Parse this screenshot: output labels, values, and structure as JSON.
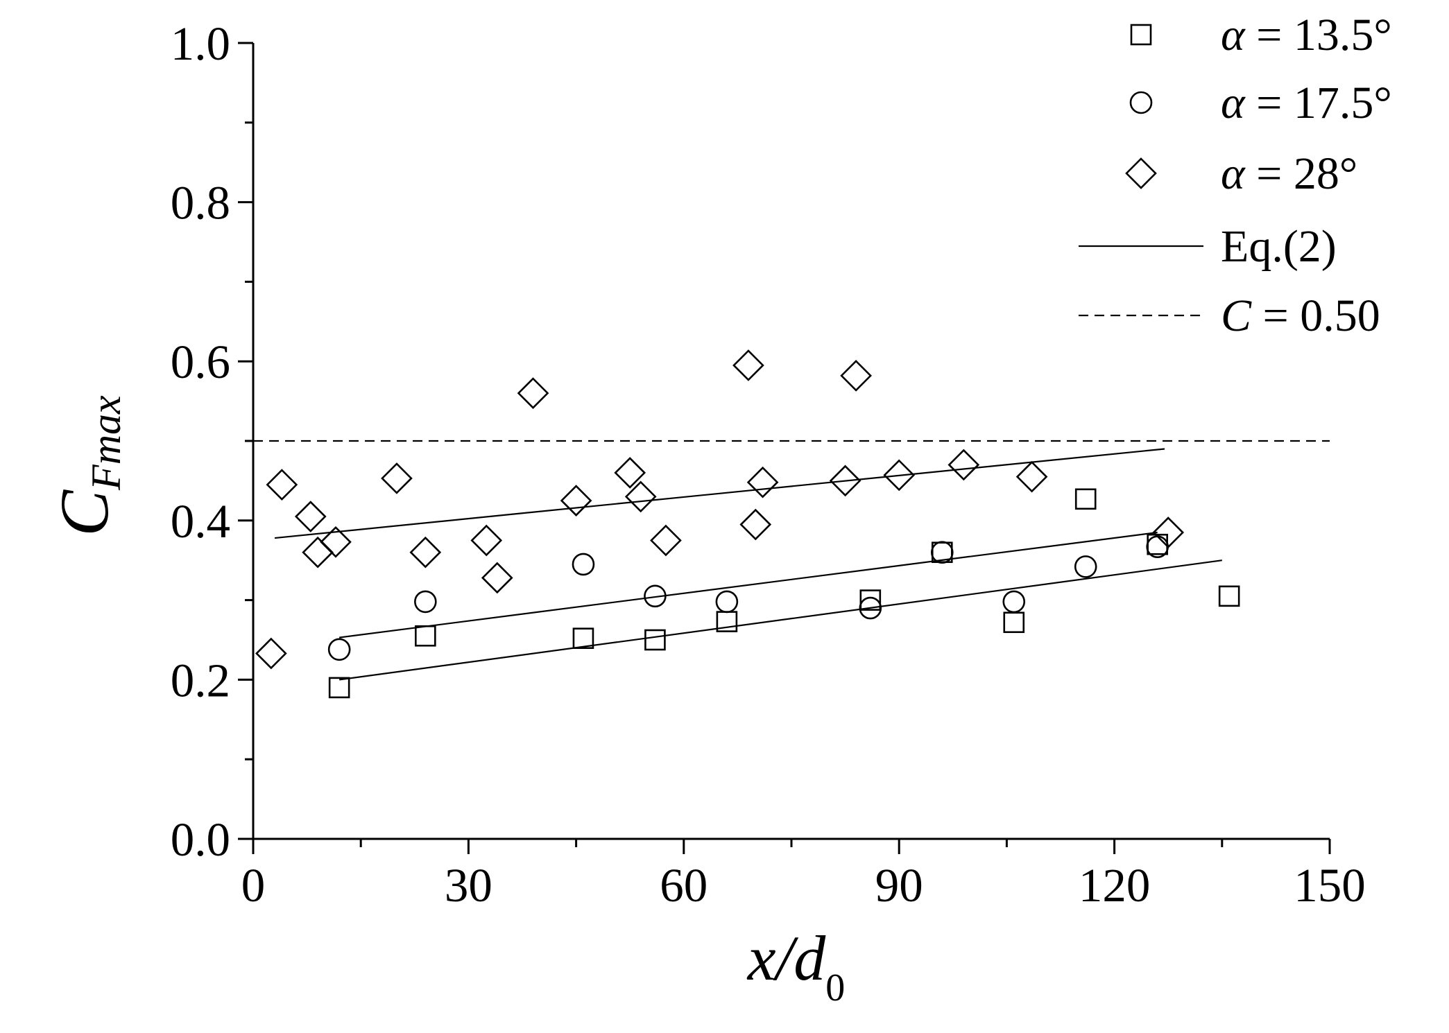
{
  "chart_data": {
    "type": "scatter",
    "title": "",
    "xlabel": {
      "main": "x/d",
      "subscript": "0"
    },
    "ylabel": {
      "main": "C",
      "subscript": "Fmax"
    },
    "xlim": [
      0,
      150
    ],
    "ylim": [
      0.0,
      1.0
    ],
    "xticks": [
      0,
      30,
      60,
      90,
      120,
      150
    ],
    "xtick_labels": [
      "0",
      "30",
      "60",
      "90",
      "120",
      "150"
    ],
    "yticks": [
      0.0,
      0.2,
      0.4,
      0.6,
      0.8,
      1.0
    ],
    "ytick_labels": [
      "0.0",
      "0.2",
      "0.4",
      "0.6",
      "0.8",
      "1.0"
    ],
    "grid": false,
    "legend_position": "top-right",
    "series": [
      {
        "name": "α = 13.5°",
        "marker": "square",
        "points": [
          [
            12,
            0.19
          ],
          [
            24,
            0.255
          ],
          [
            46,
            0.252
          ],
          [
            56,
            0.25
          ],
          [
            66,
            0.273
          ],
          [
            86,
            0.3
          ],
          [
            96,
            0.36
          ],
          [
            106,
            0.272
          ],
          [
            116,
            0.427
          ],
          [
            126,
            0.37
          ],
          [
            136,
            0.305
          ]
        ]
      },
      {
        "name": "α = 17.5°",
        "marker": "circle",
        "points": [
          [
            12,
            0.238
          ],
          [
            24,
            0.298
          ],
          [
            46,
            0.345
          ],
          [
            56,
            0.305
          ],
          [
            66,
            0.298
          ],
          [
            86,
            0.29
          ],
          [
            96,
            0.36
          ],
          [
            106,
            0.298
          ],
          [
            116,
            0.342
          ],
          [
            126,
            0.367
          ]
        ]
      },
      {
        "name": "α = 28°",
        "marker": "diamond",
        "points": [
          [
            2.5,
            0.233
          ],
          [
            4,
            0.445
          ],
          [
            8,
            0.405
          ],
          [
            9,
            0.36
          ],
          [
            11.5,
            0.373
          ],
          [
            20,
            0.453
          ],
          [
            24,
            0.36
          ],
          [
            32.5,
            0.375
          ],
          [
            34,
            0.328
          ],
          [
            39,
            0.56
          ],
          [
            45,
            0.425
          ],
          [
            52.5,
            0.46
          ],
          [
            54,
            0.43
          ],
          [
            57.5,
            0.375
          ],
          [
            69,
            0.595
          ],
          [
            70,
            0.395
          ],
          [
            71,
            0.448
          ],
          [
            82.5,
            0.45
          ],
          [
            84,
            0.582
          ],
          [
            90,
            0.457
          ],
          [
            99,
            0.47
          ],
          [
            108.5,
            0.455
          ],
          [
            127.5,
            0.385
          ]
        ]
      }
    ],
    "lines": [
      {
        "name": "Eq.(2)",
        "style": "solid",
        "x": [
          12,
          135
        ],
        "y": [
          0.2,
          0.35
        ]
      },
      {
        "name": "Eq.(2)",
        "style": "solid",
        "x": [
          12,
          126
        ],
        "y": [
          0.253,
          0.385
        ]
      },
      {
        "name": "Eq.(2)",
        "style": "solid",
        "x": [
          3,
          127
        ],
        "y": [
          0.378,
          0.49
        ]
      },
      {
        "name": "C = 0.50",
        "style": "dashed",
        "x": [
          0,
          150
        ],
        "y": [
          0.5,
          0.5
        ]
      }
    ],
    "legend": [
      {
        "marker": "square",
        "text": "α = 13.5°"
      },
      {
        "marker": "circle",
        "text": "α = 17.5°"
      },
      {
        "marker": "diamond",
        "text": "α = 28°"
      },
      {
        "marker": "solid-line",
        "text": "Eq.(2)"
      },
      {
        "marker": "dashed-line",
        "text": "C = 0.50"
      }
    ]
  }
}
